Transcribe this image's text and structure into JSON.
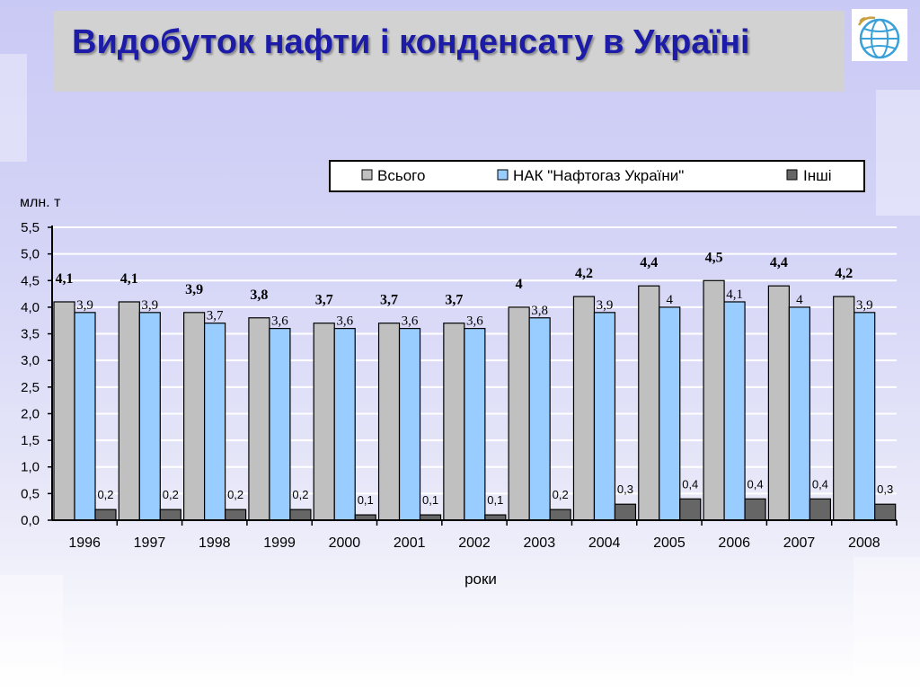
{
  "page": {
    "title": "Видобуток нафти і конденсату в Україні"
  },
  "colors": {
    "vsogo": "#c0c0c0",
    "naftogaz": "#99ccff",
    "inshi": "#666666",
    "title": "#1c1ca8"
  },
  "icons": {
    "logo": "globe-logo-icon"
  },
  "chart_data": {
    "type": "bar",
    "title": "",
    "ylabel": "млн. т",
    "xlabel": "роки",
    "ylim": [
      0,
      5.5
    ],
    "yticks": [
      0,
      0.5,
      1,
      1.5,
      2,
      2.5,
      3,
      3.5,
      4,
      4.5,
      5,
      5.5
    ],
    "ytick_labels": [
      "0,0",
      "0,5",
      "1,0",
      "1,5",
      "2,0",
      "2,5",
      "3,0",
      "3,5",
      "4,0",
      "4,5",
      "5,0",
      "5,5"
    ],
    "grid": true,
    "legend_position": "top-right",
    "categories": [
      "1996",
      "1997",
      "1998",
      "1999",
      "2000",
      "2001",
      "2002",
      "2003",
      "2004",
      "2005",
      "2006",
      "2007",
      "2008"
    ],
    "series": [
      {
        "name": "Всього",
        "values": [
          4.1,
          4.1,
          3.9,
          3.8,
          3.7,
          3.7,
          3.7,
          4.0,
          4.2,
          4.4,
          4.5,
          4.4,
          4.2
        ],
        "labels": [
          "4,1",
          "4,1",
          "3,9",
          "3,8",
          "3,7",
          "3,7",
          "3,7",
          "4",
          "4,2",
          "4,4",
          "4,5",
          "4,4",
          "4,2"
        ]
      },
      {
        "name": "НАК \"Нафтогаз України\"",
        "values": [
          3.9,
          3.9,
          3.7,
          3.6,
          3.6,
          3.6,
          3.6,
          3.8,
          3.9,
          4.0,
          4.1,
          4.0,
          3.9
        ],
        "labels": [
          "3,9",
          "3,9",
          "3,7",
          "3,6",
          "3,6",
          "3,6",
          "3,6",
          "3,8",
          "3,9",
          "4",
          "4,1",
          "4",
          "3,9"
        ]
      },
      {
        "name": "Інші",
        "values": [
          0.2,
          0.2,
          0.2,
          0.2,
          0.1,
          0.1,
          0.1,
          0.2,
          0.3,
          0.4,
          0.4,
          0.4,
          0.3
        ],
        "labels": [
          "0,2",
          "0,2",
          "0,2",
          "0,2",
          "0,1",
          "0,1",
          "0,1",
          "0,2",
          "0,3",
          "0,4",
          "0,4",
          "0,4",
          "0,3"
        ]
      }
    ]
  }
}
